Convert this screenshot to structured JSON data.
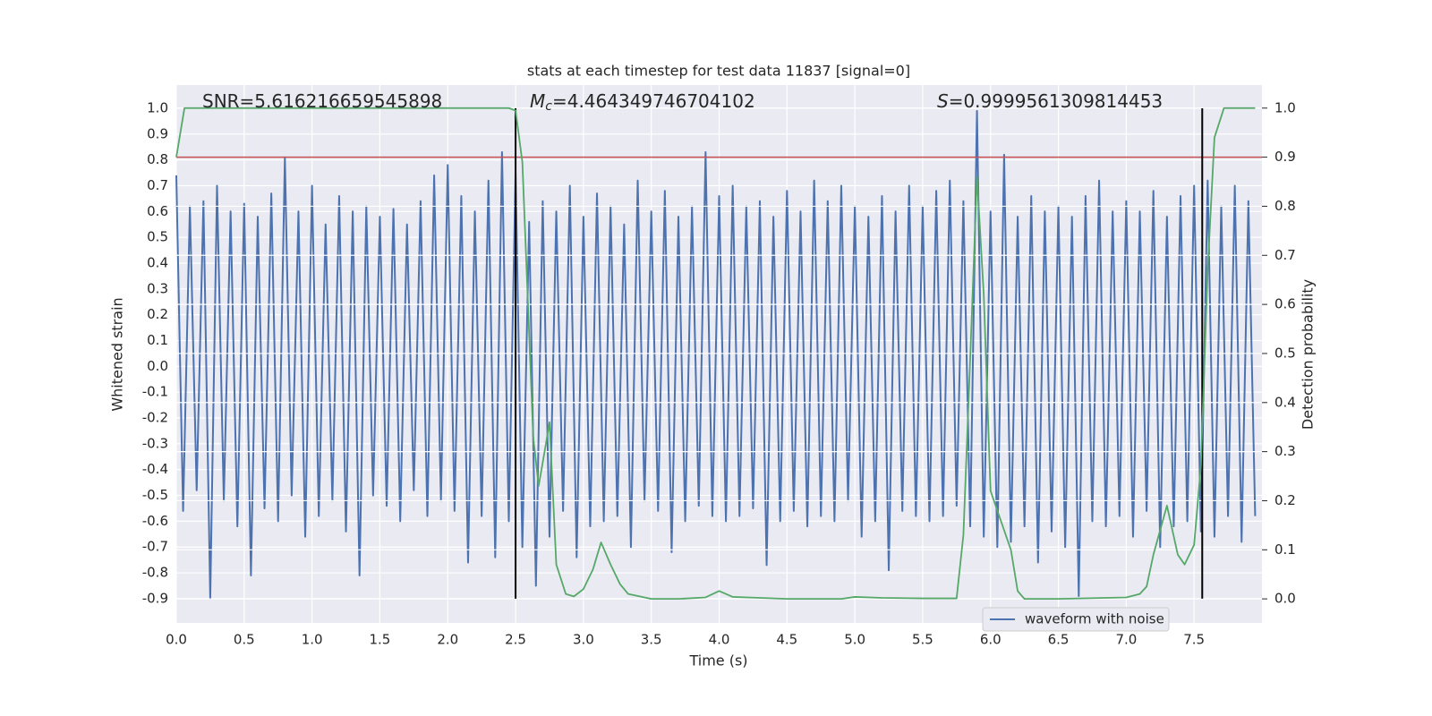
{
  "chart_data": {
    "type": "line",
    "title": "stats at each timestep for test data 11837 [signal=0]",
    "xlabel": "Time (s)",
    "ylabel": "Whitened strain",
    "y2label": "Detection probability",
    "xlim": [
      0,
      8.0
    ],
    "ylim": [
      -0.994,
      1.09
    ],
    "y2lim": [
      -0.049,
      1.047
    ],
    "xticks": [
      {
        "value": 0,
        "label": "0.0"
      },
      0.5,
      {
        "value": 1,
        "label": "1.0"
      },
      1.5,
      {
        "value": 2,
        "label": "2.0"
      },
      2.5,
      {
        "value": 3,
        "label": "3.0"
      },
      3.5,
      {
        "value": 4,
        "label": "4.0"
      },
      4.5,
      {
        "value": 5,
        "label": "5.0"
      },
      5.5,
      {
        "value": 6,
        "label": "6.0"
      },
      6.5,
      {
        "value": 7,
        "label": "7.0"
      },
      7.5
    ],
    "yticks": [
      -0.9,
      -0.8,
      -0.7,
      -0.6,
      -0.5,
      -0.4,
      -0.3,
      -0.2,
      -0.1,
      {
        "value": 0,
        "label": "0.0"
      },
      0.1,
      0.2,
      0.3,
      0.4,
      0.5,
      0.6,
      0.7,
      0.8,
      0.9,
      {
        "value": 1,
        "label": "1.0"
      }
    ],
    "y2ticks": [
      {
        "value": 0,
        "label": "0.0"
      },
      0.1,
      0.2,
      0.3,
      0.4,
      0.5,
      0.6,
      0.7,
      0.8,
      0.9,
      {
        "value": 1,
        "label": "1.0"
      }
    ],
    "grid": true,
    "legend": "lower right",
    "series": [
      {
        "name": "waveform with noise",
        "color": "#4c72b0",
        "x": [
          0,
          0.05,
          0.1,
          0.15,
          0.2,
          0.25,
          0.3,
          0.35,
          0.4,
          0.45,
          0.5,
          0.55,
          0.6,
          0.65,
          0.7,
          0.75,
          0.8,
          0.85,
          0.9,
          0.95,
          1.0,
          1.05,
          1.1,
          1.15,
          1.2,
          1.25,
          1.3,
          1.35,
          1.4,
          1.45,
          1.5,
          1.55,
          1.6,
          1.65,
          1.7,
          1.75,
          1.8,
          1.85,
          1.9,
          1.95,
          2.0,
          2.05,
          2.1,
          2.15,
          2.2,
          2.25,
          2.3,
          2.35,
          2.4,
          2.45,
          2.5,
          2.55,
          2.6,
          2.65,
          2.7,
          2.75,
          2.8,
          2.85,
          2.9,
          2.95,
          3.0,
          3.05,
          3.1,
          3.15,
          3.2,
          3.25,
          3.3,
          3.35,
          3.4,
          3.45,
          3.5,
          3.55,
          3.6,
          3.65,
          3.7,
          3.75,
          3.8,
          3.85,
          3.9,
          3.95,
          4.0,
          4.05,
          4.1,
          4.15,
          4.2,
          4.25,
          4.3,
          4.35,
          4.4,
          4.45,
          4.5,
          4.55,
          4.6,
          4.65,
          4.7,
          4.75,
          4.8,
          4.85,
          4.9,
          4.95,
          5.0,
          5.05,
          5.1,
          5.15,
          5.2,
          5.25,
          5.3,
          5.35,
          5.4,
          5.45,
          5.5,
          5.55,
          5.6,
          5.65,
          5.7,
          5.75,
          5.8,
          5.85,
          5.9,
          5.95,
          6.0,
          6.05,
          6.1,
          6.15,
          6.2,
          6.25,
          6.3,
          6.35,
          6.4,
          6.45,
          6.5,
          6.55,
          6.6,
          6.65,
          6.7,
          6.75,
          6.8,
          6.85,
          6.9,
          6.95,
          7.0,
          7.05,
          7.1,
          7.15,
          7.2,
          7.25,
          7.3,
          7.35,
          7.4,
          7.45,
          7.5,
          7.55,
          7.6,
          7.65,
          7.7,
          7.75,
          7.8,
          7.85,
          7.9,
          7.95
        ],
        "values": [
          0.74,
          -0.56,
          0.62,
          -0.48,
          0.64,
          -0.9,
          0.7,
          -0.52,
          0.6,
          -0.62,
          0.63,
          -0.81,
          0.58,
          -0.55,
          0.67,
          -0.6,
          0.81,
          -0.5,
          0.6,
          -0.66,
          0.7,
          -0.58,
          0.55,
          -0.52,
          0.66,
          -0.64,
          0.6,
          -0.81,
          0.62,
          -0.5,
          0.58,
          -0.54,
          0.61,
          -0.6,
          0.55,
          -0.48,
          0.64,
          -0.58,
          0.74,
          -0.52,
          0.78,
          -0.56,
          0.66,
          -0.76,
          0.6,
          -0.58,
          0.72,
          -0.74,
          0.83,
          -0.6,
          0.75,
          -0.7,
          0.56,
          -0.85,
          0.64,
          -0.66,
          0.6,
          -0.56,
          0.7,
          -0.74,
          0.58,
          -0.62,
          0.67,
          -0.6,
          0.62,
          -0.58,
          0.55,
          -0.7,
          0.72,
          -0.52,
          0.6,
          -0.56,
          0.68,
          -0.72,
          0.58,
          -0.6,
          0.62,
          -0.54,
          0.83,
          -0.58,
          0.66,
          -0.6,
          0.7,
          -0.58,
          0.62,
          -0.55,
          0.64,
          -0.77,
          0.58,
          -0.6,
          0.68,
          -0.56,
          0.6,
          -0.62,
          0.72,
          -0.58,
          0.64,
          -0.6,
          0.7,
          -0.52,
          0.62,
          -0.66,
          0.58,
          -0.6,
          0.66,
          -0.79,
          0.6,
          -0.56,
          0.7,
          -0.58,
          0.62,
          -0.6,
          0.68,
          -0.58,
          0.72,
          -0.54,
          0.64,
          -0.62,
          0.99,
          -0.66,
          0.6,
          -0.7,
          0.82,
          -0.68,
          0.58,
          -0.62,
          0.66,
          -0.76,
          0.6,
          -0.64,
          0.62,
          -0.7,
          0.58,
          -0.89,
          0.66,
          -0.6,
          0.72,
          -0.62,
          0.6,
          -0.58,
          0.64,
          -0.66,
          0.6,
          -0.56,
          0.68,
          -0.7,
          0.58,
          -0.62,
          0.66,
          -0.6,
          0.7,
          -0.64,
          0.72,
          -0.66,
          0.62,
          -0.58,
          0.7,
          -0.68,
          0.64,
          -0.58
        ]
      },
      {
        "color": "#55a868",
        "axis": "y2",
        "x": [
          0,
          0.06,
          0.5,
          1.0,
          1.5,
          2.0,
          2.45,
          2.5,
          2.55,
          2.63,
          2.67,
          2.72,
          2.75,
          2.8,
          2.87,
          2.93,
          3.0,
          3.07,
          3.13,
          3.2,
          3.27,
          3.33,
          3.5,
          3.7,
          3.9,
          4.0,
          4.1,
          4.3,
          4.5,
          4.9,
          5.0,
          5.2,
          5.5,
          5.75,
          5.8,
          5.85,
          5.9,
          5.95,
          6.0,
          6.1,
          6.15,
          6.2,
          6.25,
          6.5,
          7.0,
          7.1,
          7.15,
          7.2,
          7.3,
          7.38,
          7.43,
          7.5,
          7.55,
          7.6,
          7.65,
          7.72,
          7.95
        ],
        "values": [
          0.9,
          1.0,
          1.0,
          1.0,
          1.0,
          1.0,
          1.0,
          0.995,
          0.89,
          0.33,
          0.23,
          0.31,
          0.36,
          0.07,
          0.01,
          0.005,
          0.02,
          0.06,
          0.115,
          0.07,
          0.03,
          0.01,
          0.0,
          0.0,
          0.003,
          0.016,
          0.004,
          0.002,
          0.0,
          0.0,
          0.004,
          0.002,
          0.001,
          0.001,
          0.13,
          0.49,
          0.86,
          0.62,
          0.22,
          0.14,
          0.1,
          0.016,
          0.0,
          0.0,
          0.003,
          0.01,
          0.025,
          0.09,
          0.19,
          0.09,
          0.07,
          0.11,
          0.27,
          0.67,
          0.94,
          1.0,
          1.0
        ]
      }
    ],
    "hlines": [
      {
        "value": 0.9,
        "axis": "y2",
        "color": "#c44e52"
      }
    ],
    "vlines": [
      {
        "x": 2.5,
        "ymin": -0.9,
        "ymax": 1.0,
        "color": "#000000"
      },
      {
        "x": 7.56,
        "ymin": -0.9,
        "ymax": 1.0,
        "color": "#000000"
      }
    ],
    "annotations": [
      {
        "parts": [
          {
            "text": "SNR=5.616216659545898"
          }
        ]
      },
      {
        "parts": [
          {
            "text": "M",
            "style": "italic"
          },
          {
            "text": "c",
            "style": "italic-sub"
          },
          {
            "text": "=4.464349746704102"
          }
        ]
      },
      {
        "parts": [
          {
            "text": "S",
            "style": "italic"
          },
          {
            "text": "=0.9999561309814453"
          }
        ]
      }
    ]
  }
}
